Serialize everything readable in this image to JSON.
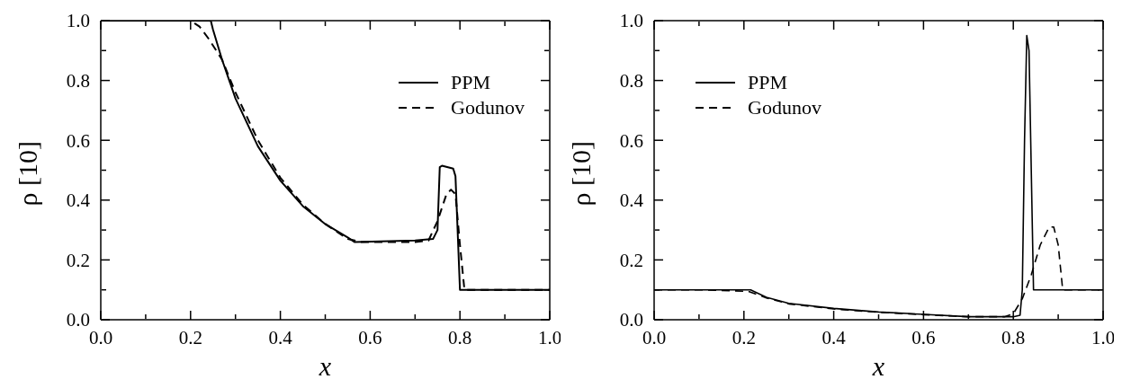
{
  "chart_data": [
    {
      "type": "line",
      "xlabel": "x",
      "ylabel": "ρ [10]",
      "xlim": [
        0,
        1
      ],
      "ylim": [
        0,
        1
      ],
      "xticks": [
        {
          "value": 0,
          "label": "0.0"
        },
        {
          "value": 0.1,
          "label": null
        },
        {
          "value": 0.2,
          "label": "0.2"
        },
        {
          "value": 0.3,
          "label": null
        },
        {
          "value": 0.4,
          "label": "0.4"
        },
        {
          "value": 0.5,
          "label": null
        },
        {
          "value": 0.6,
          "label": "0.6"
        },
        {
          "value": 0.7,
          "label": null
        },
        {
          "value": 0.8,
          "label": "0.8"
        },
        {
          "value": 0.9,
          "label": null
        },
        {
          "value": 1,
          "label": "1.0"
        }
      ],
      "yticks": [
        {
          "value": 0,
          "label": "0.0"
        },
        {
          "value": 0.1,
          "label": null
        },
        {
          "value": 0.2,
          "label": "0.2"
        },
        {
          "value": 0.3,
          "label": null
        },
        {
          "value": 0.4,
          "label": "0.4"
        },
        {
          "value": 0.5,
          "label": null
        },
        {
          "value": 0.6,
          "label": "0.6"
        },
        {
          "value": 0.7,
          "label": null
        },
        {
          "value": 0.8,
          "label": "0.8"
        },
        {
          "value": 0.9,
          "label": null
        },
        {
          "value": 1,
          "label": "1.0"
        }
      ],
      "legend": "top right",
      "marker": "none",
      "series": [
        {
          "name": "PPM",
          "color": "#000000",
          "line_style": "solid",
          "x": [
            0,
            0.1,
            0.2,
            0.245,
            0.25,
            0.27,
            0.3,
            0.35,
            0.4,
            0.45,
            0.5,
            0.55,
            0.565,
            0.7,
            0.74,
            0.75,
            0.755,
            0.76,
            0.785,
            0.79,
            0.8,
            0.9,
            1
          ],
          "values": [
            1,
            1,
            1,
            1,
            0.97,
            0.87,
            0.74,
            0.58,
            0.465,
            0.38,
            0.32,
            0.275,
            0.26,
            0.265,
            0.27,
            0.3,
            0.51,
            0.515,
            0.505,
            0.48,
            0.1,
            0.1,
            0.1
          ]
        },
        {
          "name": "Godunov",
          "color": "#000000",
          "line_style": "dashed",
          "x": [
            0,
            0.1,
            0.2,
            0.22,
            0.24,
            0.27,
            0.3,
            0.35,
            0.4,
            0.45,
            0.5,
            0.55,
            0.58,
            0.7,
            0.73,
            0.75,
            0.77,
            0.78,
            0.79,
            0.8,
            0.81,
            0.9,
            1
          ],
          "values": [
            1,
            1,
            1,
            0.98,
            0.94,
            0.87,
            0.76,
            0.6,
            0.475,
            0.385,
            0.32,
            0.27,
            0.26,
            0.26,
            0.265,
            0.33,
            0.42,
            0.435,
            0.42,
            0.25,
            0.1,
            0.1,
            0.1
          ]
        }
      ]
    },
    {
      "type": "line",
      "xlabel": "x",
      "ylabel": "ρ [10]",
      "xlim": [
        0,
        1
      ],
      "ylim": [
        0,
        1
      ],
      "xticks": [
        {
          "value": 0,
          "label": "0.0"
        },
        {
          "value": 0.1,
          "label": null
        },
        {
          "value": 0.2,
          "label": "0.2"
        },
        {
          "value": 0.3,
          "label": null
        },
        {
          "value": 0.4,
          "label": "0.4"
        },
        {
          "value": 0.5,
          "label": null
        },
        {
          "value": 0.6,
          "label": "0.6"
        },
        {
          "value": 0.7,
          "label": null
        },
        {
          "value": 0.8,
          "label": "0.8"
        },
        {
          "value": 0.9,
          "label": null
        },
        {
          "value": 1,
          "label": "1.0"
        }
      ],
      "yticks": [
        {
          "value": 0,
          "label": "0.0"
        },
        {
          "value": 0.1,
          "label": null
        },
        {
          "value": 0.2,
          "label": "0.2"
        },
        {
          "value": 0.3,
          "label": null
        },
        {
          "value": 0.4,
          "label": "0.4"
        },
        {
          "value": 0.5,
          "label": null
        },
        {
          "value": 0.6,
          "label": "0.6"
        },
        {
          "value": 0.7,
          "label": null
        },
        {
          "value": 0.8,
          "label": "0.8"
        },
        {
          "value": 0.9,
          "label": null
        },
        {
          "value": 1,
          "label": "1.0"
        }
      ],
      "legend": "top left",
      "marker": "none",
      "series": [
        {
          "name": "PPM",
          "color": "#000000",
          "line_style": "solid",
          "x": [
            0,
            0.1,
            0.215,
            0.25,
            0.3,
            0.4,
            0.5,
            0.6,
            0.7,
            0.8,
            0.815,
            0.82,
            0.825,
            0.83,
            0.835,
            0.845,
            0.9,
            1
          ],
          "values": [
            0.1,
            0.1,
            0.1,
            0.075,
            0.055,
            0.038,
            0.026,
            0.018,
            0.01,
            0.01,
            0.015,
            0.1,
            0.6,
            0.95,
            0.9,
            0.1,
            0.1,
            0.1
          ]
        },
        {
          "name": "Godunov",
          "color": "#000000",
          "line_style": "dashed",
          "x": [
            0,
            0.1,
            0.21,
            0.25,
            0.3,
            0.4,
            0.5,
            0.6,
            0.7,
            0.78,
            0.8,
            0.82,
            0.84,
            0.86,
            0.88,
            0.89,
            0.9,
            0.91,
            1
          ],
          "values": [
            0.1,
            0.1,
            0.095,
            0.073,
            0.053,
            0.036,
            0.025,
            0.017,
            0.01,
            0.01,
            0.02,
            0.07,
            0.15,
            0.25,
            0.31,
            0.31,
            0.25,
            0.1,
            0.1
          ]
        }
      ]
    }
  ]
}
